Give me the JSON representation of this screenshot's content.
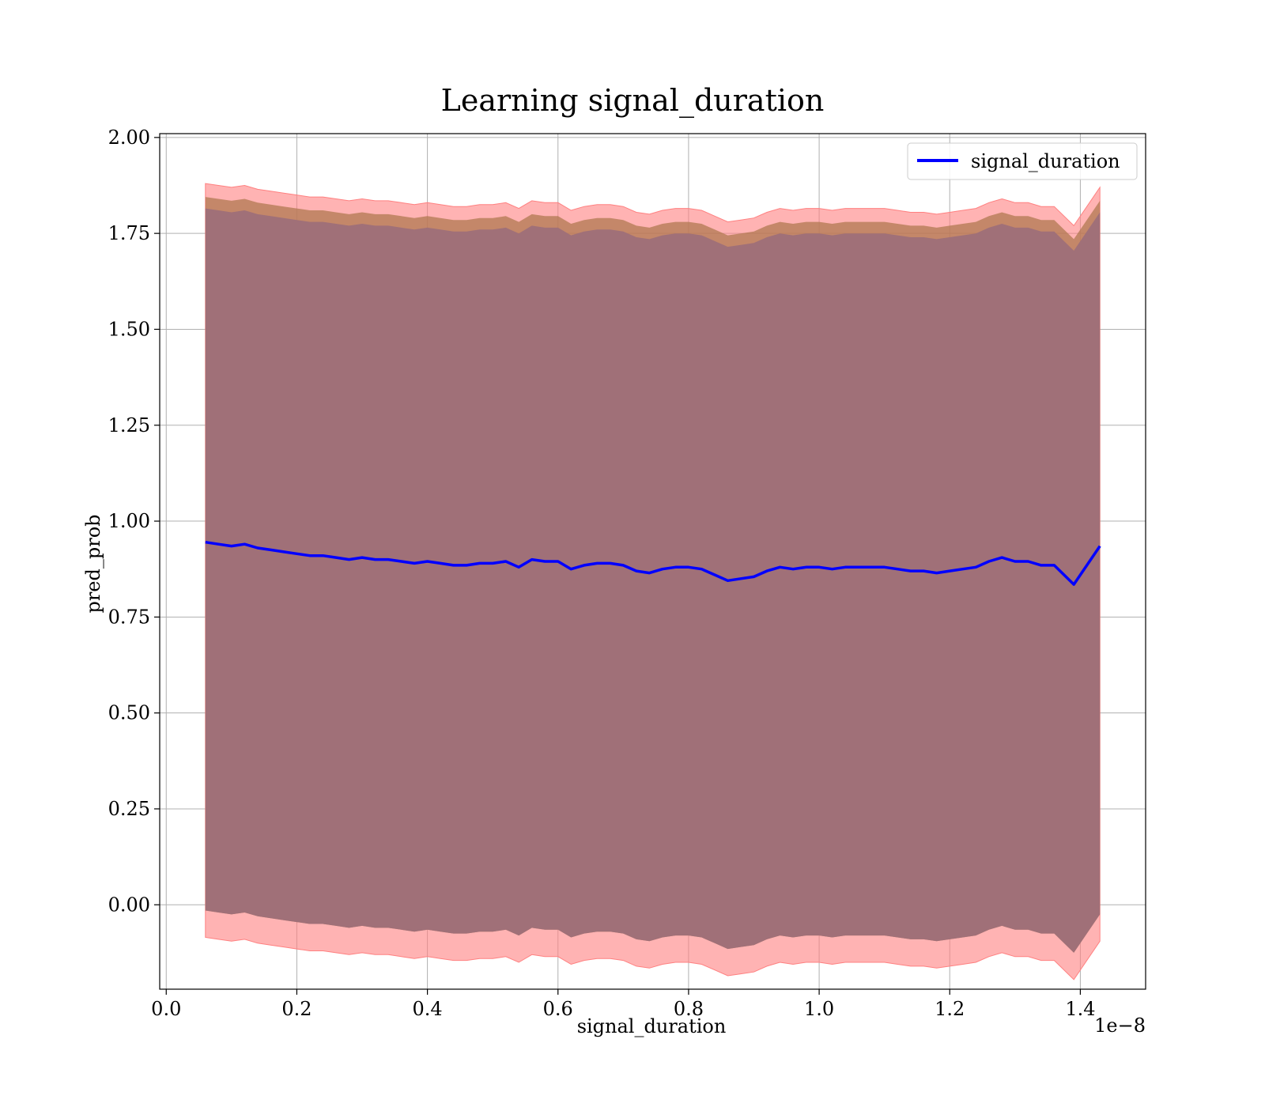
{
  "chart_data": {
    "type": "line",
    "title": "Learning signal_duration",
    "xlabel": "signal_duration",
    "ylabel": "pred_prob",
    "x_offset_label": "1e−8",
    "x_ticks": [
      0.0,
      0.2,
      0.4,
      0.6,
      0.8,
      1.0,
      1.2,
      1.4
    ],
    "x_tick_labels": [
      "0.0",
      "0.2",
      "0.4",
      "0.6",
      "0.8",
      "1.0",
      "1.2",
      "1.4"
    ],
    "y_ticks": [
      0.0,
      0.25,
      0.5,
      0.75,
      1.0,
      1.25,
      1.5,
      1.75,
      2.0
    ],
    "y_tick_labels": [
      "0.00",
      "0.25",
      "0.50",
      "0.75",
      "1.00",
      "1.25",
      "1.50",
      "1.75",
      "2.00"
    ],
    "xlim": [
      -0.01,
      1.5
    ],
    "ylim": [
      -0.22,
      2.01
    ],
    "grid": true,
    "legend_position": "top-right",
    "colors": {
      "line": "#0000ff",
      "outer_band": "#ff8080",
      "inner_band": "#b07850",
      "core_band": "#a07078",
      "grid": "#b0b0b0"
    },
    "series": [
      {
        "name": "signal_duration",
        "x": [
          0.06,
          0.08,
          0.1,
          0.12,
          0.14,
          0.16,
          0.18,
          0.2,
          0.22,
          0.24,
          0.26,
          0.28,
          0.3,
          0.32,
          0.34,
          0.36,
          0.38,
          0.4,
          0.42,
          0.44,
          0.46,
          0.48,
          0.5,
          0.52,
          0.54,
          0.56,
          0.58,
          0.6,
          0.62,
          0.64,
          0.66,
          0.68,
          0.7,
          0.72,
          0.74,
          0.76,
          0.78,
          0.8,
          0.82,
          0.84,
          0.86,
          0.88,
          0.9,
          0.92,
          0.94,
          0.96,
          0.98,
          1.0,
          1.02,
          1.04,
          1.06,
          1.08,
          1.1,
          1.12,
          1.14,
          1.16,
          1.18,
          1.2,
          1.22,
          1.24,
          1.26,
          1.28,
          1.3,
          1.32,
          1.34,
          1.36,
          1.39,
          1.43
        ],
        "values": [
          0.945,
          0.94,
          0.935,
          0.94,
          0.93,
          0.925,
          0.92,
          0.915,
          0.91,
          0.91,
          0.905,
          0.9,
          0.905,
          0.9,
          0.9,
          0.895,
          0.89,
          0.895,
          0.89,
          0.885,
          0.885,
          0.89,
          0.89,
          0.895,
          0.88,
          0.9,
          0.895,
          0.895,
          0.875,
          0.885,
          0.89,
          0.89,
          0.885,
          0.87,
          0.865,
          0.875,
          0.88,
          0.88,
          0.875,
          0.86,
          0.845,
          0.85,
          0.855,
          0.87,
          0.88,
          0.875,
          0.88,
          0.88,
          0.875,
          0.88,
          0.88,
          0.88,
          0.88,
          0.875,
          0.87,
          0.87,
          0.865,
          0.87,
          0.875,
          0.88,
          0.895,
          0.905,
          0.895,
          0.895,
          0.885,
          0.885,
          0.835,
          0.935
        ]
      }
    ],
    "band_width": {
      "outer_upper_offset": 0.935,
      "outer_lower_offset": 1.03,
      "inner_offset": 0.9,
      "core_offset": 0.87
    }
  }
}
